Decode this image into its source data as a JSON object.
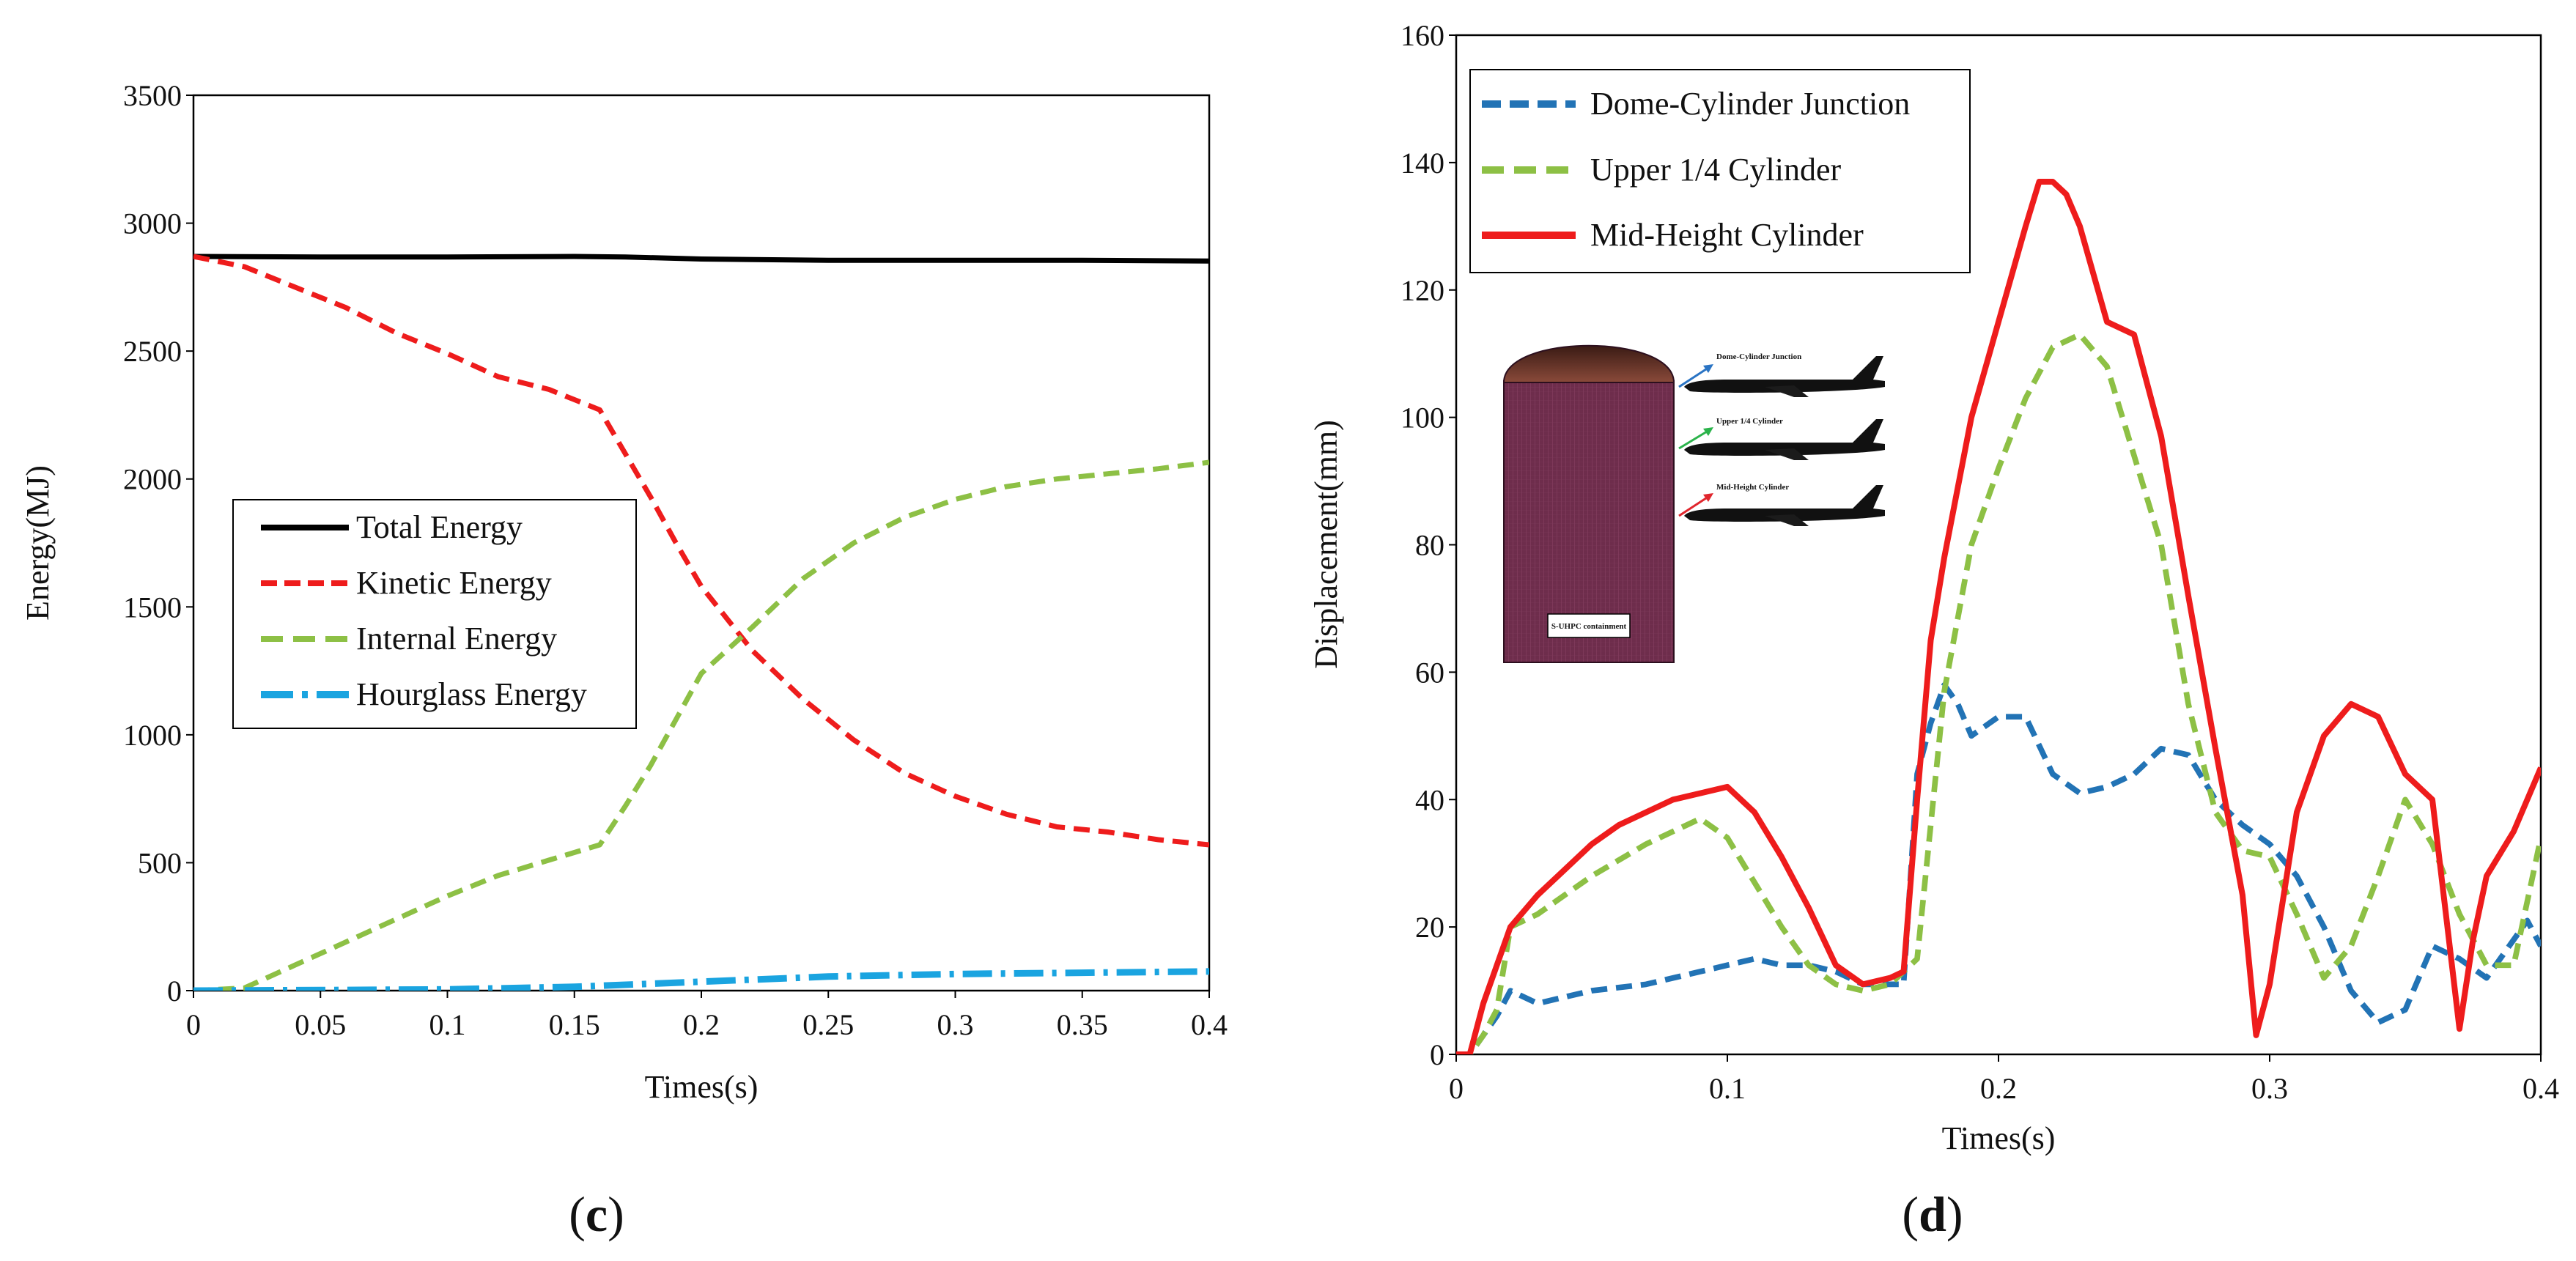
{
  "chart_data": [
    {
      "type": "line",
      "panel_label": "(c)",
      "panel_prefix": "(",
      "panel_letter": "c",
      "panel_suffix": ")",
      "title": "",
      "xlabel": "Times(s)",
      "ylabel": "Energy(MJ)",
      "xlim": [
        0,
        0.4
      ],
      "ylim": [
        0,
        3500
      ],
      "xticks": [
        0,
        0.05,
        0.1,
        0.15,
        0.2,
        0.25,
        0.3,
        0.35,
        0.4
      ],
      "xtick_labels": [
        "0",
        "0.05",
        "0.1",
        "0.15",
        "0.2",
        "0.25",
        "0.3",
        "0.35",
        "0.4"
      ],
      "yticks": [
        0,
        500,
        1000,
        1500,
        2000,
        2500,
        3000,
        3500
      ],
      "ytick_labels": [
        "0",
        "500",
        "1000",
        "1500",
        "2000",
        "2500",
        "3000",
        "3500"
      ],
      "grid": false,
      "legend_position": "center-left",
      "series": [
        {
          "name": "Total Energy",
          "color": "#000000",
          "style": "solid",
          "x": [
            0,
            0.05,
            0.1,
            0.15,
            0.17,
            0.2,
            0.25,
            0.3,
            0.35,
            0.4
          ],
          "y": [
            2870,
            2868,
            2868,
            2870,
            2868,
            2860,
            2855,
            2855,
            2855,
            2852
          ]
        },
        {
          "name": "Kinetic Energy",
          "color": "#ee1c1c",
          "style": "dash",
          "x": [
            0,
            0.02,
            0.04,
            0.06,
            0.08,
            0.1,
            0.12,
            0.14,
            0.16,
            0.17,
            0.18,
            0.19,
            0.2,
            0.22,
            0.24,
            0.26,
            0.28,
            0.3,
            0.32,
            0.34,
            0.36,
            0.38,
            0.4
          ],
          "y": [
            2870,
            2830,
            2750,
            2670,
            2570,
            2490,
            2400,
            2350,
            2270,
            2100,
            1930,
            1750,
            1580,
            1330,
            1140,
            980,
            850,
            760,
            690,
            640,
            620,
            590,
            570
          ]
        },
        {
          "name": "Internal Energy",
          "color": "#8dc045",
          "style": "dash",
          "x": [
            0,
            0.02,
            0.04,
            0.06,
            0.08,
            0.1,
            0.12,
            0.14,
            0.16,
            0.17,
            0.18,
            0.19,
            0.2,
            0.22,
            0.24,
            0.26,
            0.28,
            0.3,
            0.32,
            0.34,
            0.36,
            0.38,
            0.4
          ],
          "y": [
            0,
            10,
            100,
            190,
            280,
            370,
            450,
            510,
            570,
            720,
            880,
            1060,
            1240,
            1420,
            1610,
            1750,
            1850,
            1920,
            1970,
            2000,
            2020,
            2040,
            2065
          ]
        },
        {
          "name": "Hourglass Energy",
          "color": "#1aa4e0",
          "style": "dashdot",
          "x": [
            0,
            0.05,
            0.1,
            0.15,
            0.2,
            0.25,
            0.3,
            0.35,
            0.4
          ],
          "y": [
            0,
            2,
            5,
            15,
            35,
            55,
            65,
            70,
            75
          ]
        }
      ]
    },
    {
      "type": "line",
      "panel_label": "(d)",
      "panel_prefix": "(",
      "panel_letter": "d",
      "panel_suffix": ")",
      "title": "",
      "xlabel": "Times(s)",
      "ylabel": "Displacement(mm)",
      "xlim": [
        0,
        0.4
      ],
      "ylim": [
        0,
        160
      ],
      "xticks": [
        0,
        0.1,
        0.2,
        0.3,
        0.4
      ],
      "xtick_labels": [
        "0",
        "0.1",
        "0.2",
        "0.3",
        "0.4"
      ],
      "yticks": [
        0,
        20,
        40,
        60,
        80,
        100,
        120,
        140,
        160
      ],
      "ytick_labels": [
        "0",
        "20",
        "40",
        "60",
        "80",
        "100",
        "120",
        "140",
        "160"
      ],
      "grid": false,
      "legend_position": "top-left",
      "series": [
        {
          "name": "Dome-Cylinder Junction",
          "color": "#2273b5",
          "style": "dash",
          "x": [
            0,
            0.005,
            0.01,
            0.015,
            0.02,
            0.03,
            0.05,
            0.07,
            0.09,
            0.1,
            0.11,
            0.12,
            0.13,
            0.14,
            0.15,
            0.16,
            0.165,
            0.17,
            0.175,
            0.18,
            0.185,
            0.19,
            0.2,
            0.21,
            0.22,
            0.23,
            0.24,
            0.25,
            0.26,
            0.27,
            0.28,
            0.29,
            0.3,
            0.31,
            0.32,
            0.33,
            0.34,
            0.35,
            0.36,
            0.37,
            0.38,
            0.39,
            0.395,
            0.4
          ],
          "y": [
            0,
            0,
            3,
            6,
            10,
            8,
            10,
            11,
            13,
            14,
            15,
            14,
            14,
            13,
            11,
            11,
            11,
            44,
            52,
            58,
            55,
            50,
            53,
            53,
            44,
            41,
            42,
            44,
            48,
            47,
            40,
            36,
            33,
            28,
            20,
            10,
            5,
            7,
            17,
            15,
            12,
            18,
            21,
            17
          ]
        },
        {
          "name": "Upper 1/4 Cylinder",
          "color": "#8dc045",
          "style": "dash",
          "x": [
            0,
            0.005,
            0.01,
            0.015,
            0.02,
            0.03,
            0.05,
            0.07,
            0.09,
            0.1,
            0.11,
            0.12,
            0.13,
            0.14,
            0.15,
            0.16,
            0.17,
            0.18,
            0.19,
            0.2,
            0.21,
            0.22,
            0.23,
            0.24,
            0.25,
            0.26,
            0.27,
            0.28,
            0.29,
            0.3,
            0.31,
            0.32,
            0.33,
            0.34,
            0.35,
            0.36,
            0.37,
            0.38,
            0.39,
            0.4
          ],
          "y": [
            0,
            0,
            3,
            7,
            20,
            22,
            28,
            33,
            37,
            34,
            27,
            20,
            14,
            11,
            10,
            11,
            15,
            57,
            80,
            92,
            103,
            111,
            113,
            108,
            94,
            80,
            55,
            38,
            32,
            31,
            22,
            12,
            17,
            28,
            40,
            33,
            22,
            14,
            14,
            34
          ]
        },
        {
          "name": "Mid-Height Cylinder",
          "color": "#ee1c1c",
          "style": "solid",
          "x": [
            0,
            0.005,
            0.01,
            0.015,
            0.02,
            0.03,
            0.04,
            0.05,
            0.06,
            0.07,
            0.08,
            0.09,
            0.1,
            0.11,
            0.12,
            0.13,
            0.14,
            0.15,
            0.16,
            0.165,
            0.17,
            0.175,
            0.18,
            0.19,
            0.2,
            0.21,
            0.215,
            0.22,
            0.225,
            0.23,
            0.24,
            0.25,
            0.26,
            0.27,
            0.28,
            0.29,
            0.295,
            0.3,
            0.31,
            0.32,
            0.33,
            0.34,
            0.35,
            0.36,
            0.365,
            0.37,
            0.375,
            0.38,
            0.39,
            0.4
          ],
          "y": [
            0,
            0,
            8,
            14,
            20,
            25,
            29,
            33,
            36,
            38,
            40,
            41,
            42,
            38,
            31,
            23,
            14,
            11,
            12,
            13,
            40,
            65,
            78,
            100,
            115,
            130,
            137,
            137,
            135,
            130,
            115,
            113,
            97,
            72,
            48,
            25,
            3,
            11,
            38,
            50,
            55,
            53,
            44,
            40,
            22,
            4,
            18,
            28,
            35,
            45
          ]
        }
      ],
      "inset": {
        "containment_label": "S-UHPC containment",
        "aircraft_labels": [
          "Dome-Cylinder Junction",
          "Upper 1/4 Cylinder",
          "Mid-Height Cylinder"
        ]
      }
    }
  ]
}
